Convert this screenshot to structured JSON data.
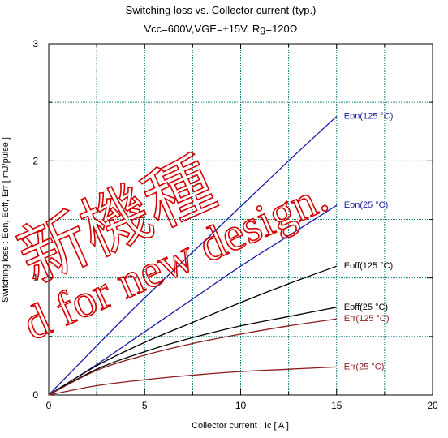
{
  "chart_data": {
    "type": "line",
    "title": "Switching loss  vs.  Collector current  (typ.)",
    "subtitle": "Vcc=600V,VGE=±15V, Rg=120Ω",
    "xlabel": "Collector current  :  Ic  [ A ]",
    "ylabel": "Switching loss  :  Eon, Eoff, Err  [ mJ/pulse ]",
    "xlim": [
      0,
      20
    ],
    "ylim": [
      0,
      3
    ],
    "x_ticks": [
      0,
      5,
      10,
      15,
      20
    ],
    "y_ticks": [
      0,
      1,
      2,
      3
    ],
    "grid": true,
    "series": [
      {
        "name": "Eon(125 °C)",
        "color": "#1a1aa6",
        "x": [
          0,
          2.5,
          5,
          7.5,
          10,
          12.5,
          15
        ],
        "y": [
          0,
          0.42,
          0.83,
          1.22,
          1.61,
          2.0,
          2.38
        ]
      },
      {
        "name": "Eon(25 °C)",
        "color": "#1a1aa6",
        "x": [
          0,
          2.5,
          5,
          7.5,
          10,
          12.5,
          15
        ],
        "y": [
          0,
          0.26,
          0.54,
          0.82,
          1.1,
          1.36,
          1.62
        ]
      },
      {
        "name": "Eoff(125 °C)",
        "color": "#000000",
        "x": [
          0,
          2.5,
          5,
          7.5,
          10,
          12.5,
          15
        ],
        "y": [
          0,
          0.25,
          0.45,
          0.62,
          0.79,
          0.95,
          1.1
        ]
      },
      {
        "name": "Eoff(25 °C)",
        "color": "#000000",
        "x": [
          0,
          2.5,
          5,
          7.5,
          10,
          12.5,
          15
        ],
        "y": [
          0,
          0.22,
          0.37,
          0.49,
          0.59,
          0.67,
          0.75
        ]
      },
      {
        "name": "Err(125 °C)",
        "color": "#8b1a1a",
        "x": [
          0,
          2.5,
          5,
          7.5,
          10,
          12.5,
          15
        ],
        "y": [
          0,
          0.21,
          0.34,
          0.44,
          0.52,
          0.59,
          0.65
        ]
      },
      {
        "name": "Err(25 °C)",
        "color": "#8b1a1a",
        "x": [
          0,
          2.5,
          5,
          7.5,
          10,
          12.5,
          15
        ],
        "y": [
          0,
          0.08,
          0.13,
          0.17,
          0.2,
          0.22,
          0.24
        ]
      }
    ]
  },
  "watermark": {
    "line1": "新機種",
    "line2": "d for new design.",
    "color": "#d40000"
  }
}
